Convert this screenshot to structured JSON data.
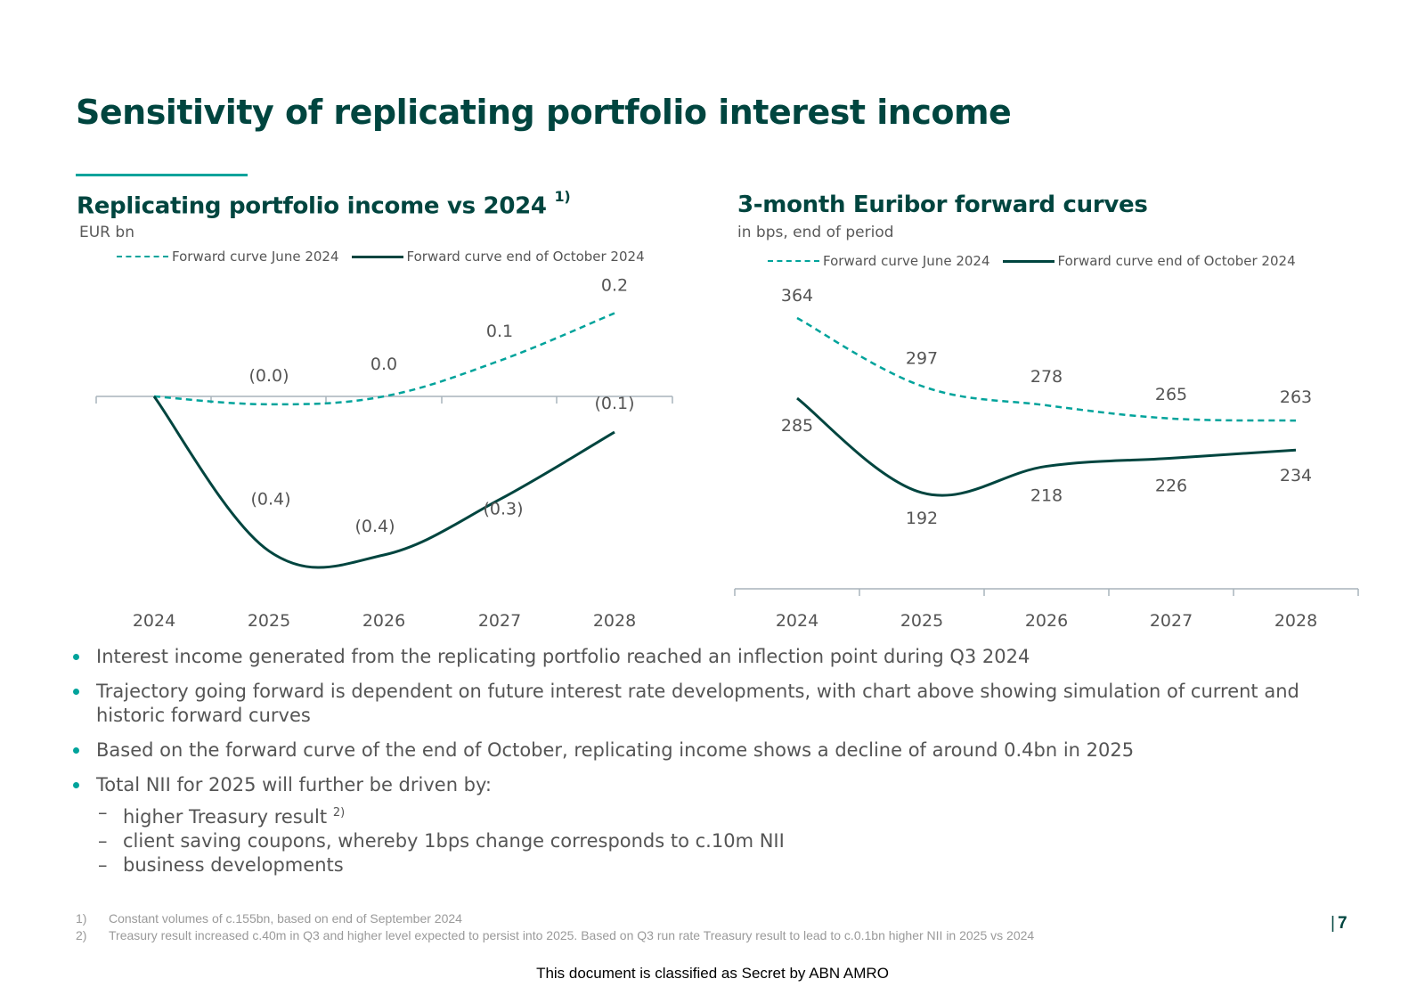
{
  "title": "Sensitivity of replicating portfolio interest income",
  "colors": {
    "dark": "#00453f",
    "teal": "#00a39b",
    "axis": "#a8b4bc"
  },
  "chart_data": [
    {
      "type": "line",
      "title": "Replicating portfolio income vs 2024",
      "title_footnote": "1)",
      "subtitle": "EUR bn",
      "categories": [
        "2024",
        "2025",
        "2026",
        "2027",
        "2028"
      ],
      "ylim": [
        -0.45,
        0.22
      ],
      "series": [
        {
          "name": "Forward curve June 2024",
          "style": "dashed",
          "values": [
            0.0,
            -0.02,
            0.0,
            0.09,
            0.21
          ],
          "labels": [
            "",
            "(0.0)",
            "0.0",
            "0.1",
            "0.2"
          ]
        },
        {
          "name": "Forward curve end of October 2024",
          "style": "solid",
          "values": [
            0.0,
            -0.39,
            -0.4,
            -0.26,
            -0.09
          ],
          "labels": [
            "",
            "(0.4)",
            "(0.4)",
            "(0.3)",
            "(0.1)"
          ]
        }
      ]
    },
    {
      "type": "line",
      "title": "3-month Euribor forward curves",
      "subtitle": "in bps, end of period",
      "categories": [
        "2024",
        "2025",
        "2026",
        "2027",
        "2028"
      ],
      "ylim": [
        0,
        400
      ],
      "series": [
        {
          "name": "Forward curve June 2024",
          "style": "dashed",
          "values": [
            364,
            297,
            278,
            265,
            263
          ],
          "labels": [
            "364",
            "297",
            "278",
            "265",
            "263"
          ]
        },
        {
          "name": "Forward curve end of October 2024",
          "style": "solid",
          "values": [
            285,
            192,
            218,
            226,
            234
          ],
          "labels": [
            "285",
            "192",
            "218",
            "226",
            "234"
          ]
        }
      ]
    }
  ],
  "bullets": [
    {
      "text": "Interest income generated from the replicating portfolio reached an inflection point during Q3 2024"
    },
    {
      "text": "Trajectory going forward is dependent on future interest rate developments, with chart above showing simulation of current and historic forward curves"
    },
    {
      "text": "Based on the forward curve of the end of October, replicating income shows a decline of around 0.4bn in 2025"
    },
    {
      "text": "Total NII for 2025 will further be driven by:"
    }
  ],
  "subbullets": [
    {
      "text": "higher Treasury result",
      "sup": "2)"
    },
    {
      "text": "client saving coupons, whereby 1bps change corresponds to c.10m NII",
      "sup": ""
    },
    {
      "text": "business developments",
      "sup": ""
    }
  ],
  "dash_glyph": "–",
  "footnotes": [
    {
      "num": "1)",
      "text": "Constant volumes of c.155bn, based on end of September 2024"
    },
    {
      "num": "2)",
      "text": "Treasury result increased c.40m in Q3 and higher level expected to persist into 2025. Based on Q3 run rate Treasury result to lead to c.0.1bn higher NII in 2025 vs 2024"
    }
  ],
  "page": {
    "bar": "|",
    "number": "7"
  },
  "classification": "This document is classified as Secret by ABN AMRO"
}
